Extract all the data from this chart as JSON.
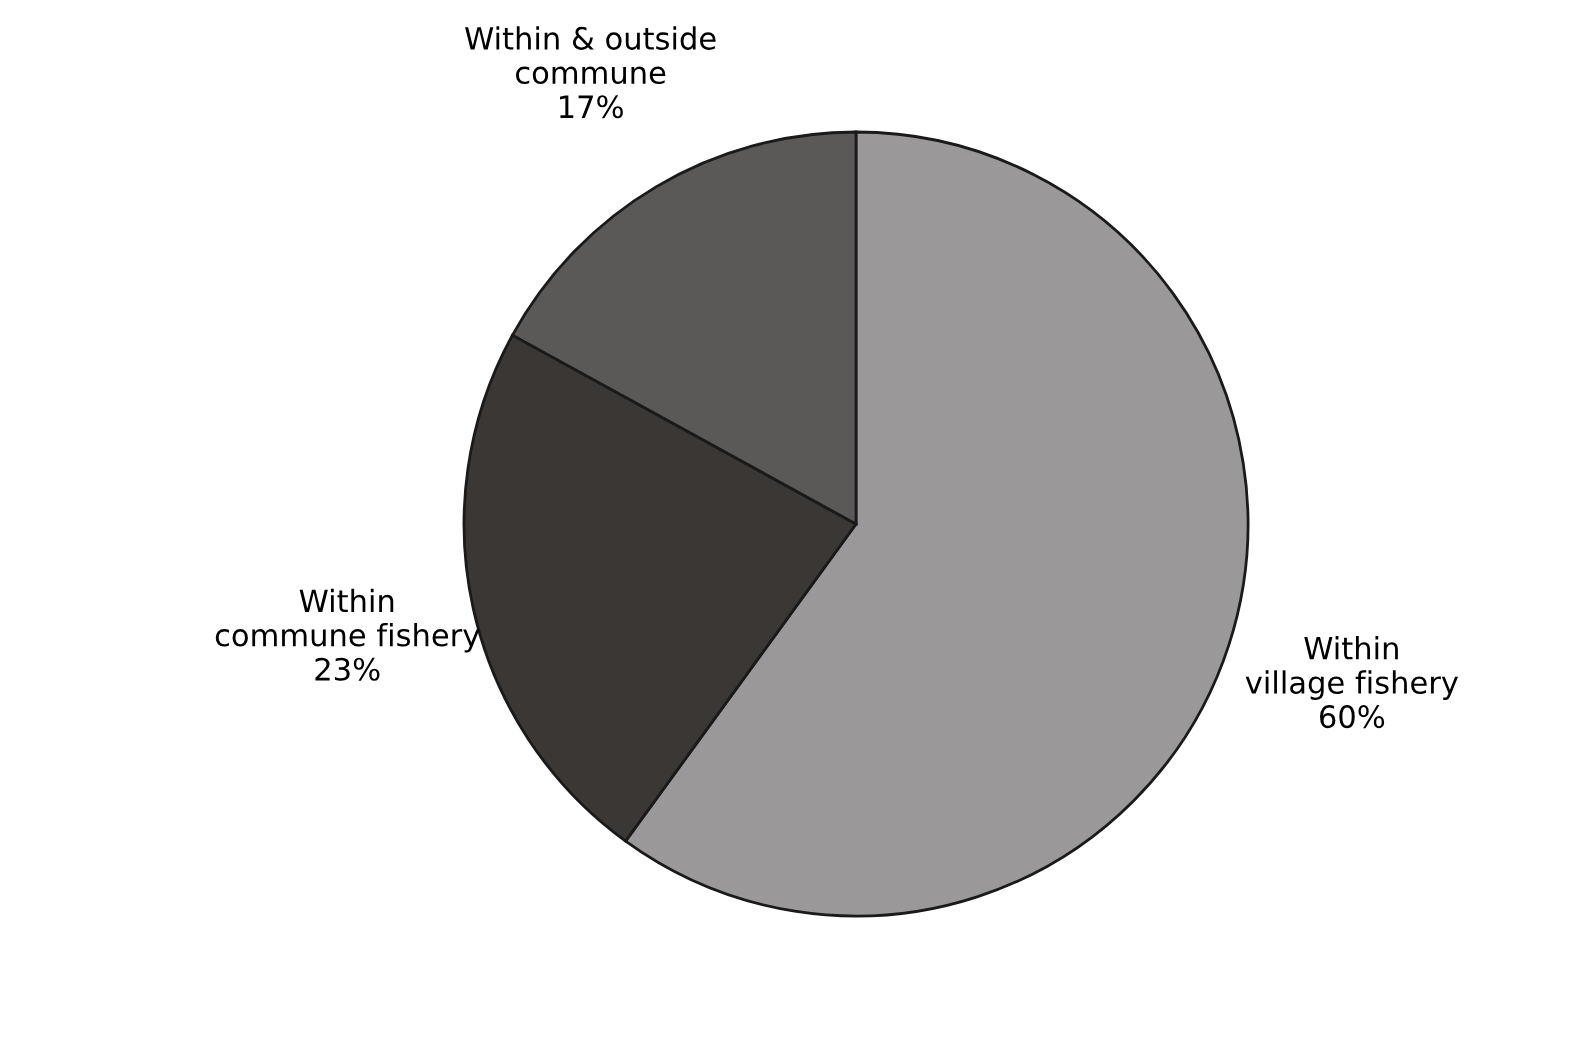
{
  "chart_data": {
    "type": "pie",
    "categories": [
      "Within\nvillage fishery",
      "Within\ncommune fishery",
      "Within & outside\ncommune"
    ],
    "values": [
      60,
      23,
      17
    ],
    "value_labels": [
      "60%",
      "23%",
      "17%"
    ],
    "colors": [
      "#9a9899",
      "#3b3735",
      "#5b5957"
    ]
  }
}
